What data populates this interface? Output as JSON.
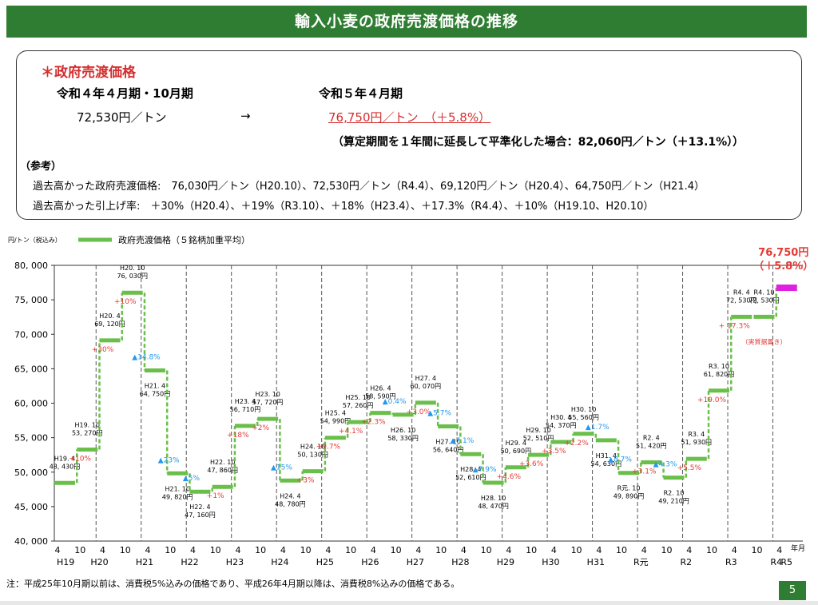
{
  "header": {
    "title": "輸入小麦の政府売渡価格の推移"
  },
  "summary": {
    "heading": "＊政府売渡価格",
    "prev_period": "令和４年４月期・10月期",
    "prev_price": "72,530円／トン",
    "arrow": "→",
    "new_period": "令和５年４月期",
    "new_price": "76,750円／トン　（＋5.8%）",
    "note": "（算定期間を１年間に延長して平準化した場合：82,060円／トン（＋13.1%））",
    "ref_label": "（参考）",
    "ref_line1": "過去高かった政府売渡価格:　76,030円／トン（H20.10）、72,530円／トン（R4.4）、69,120円／トン（H20.4）、64,750円／トン（H21.4）",
    "ref_line2": "過去高かった引上げ率:　＋30%（H20.4）、＋19%（R3.10）、＋18%（H23.4）、＋17.3%（R4.4）、＋10%（H19.10、H20.10）"
  },
  "chart_data": {
    "type": "line",
    "title": "",
    "unit_label": "円/トン（税込み）",
    "legend": "政府売渡価格（５銘柄加重平均）",
    "ylim": [
      40000,
      80000
    ],
    "yticks": [
      "40, 000",
      "45, 000",
      "50, 000",
      "55, 000",
      "60, 000",
      "65, 000",
      "70, 000",
      "75, 000",
      "80, 000"
    ],
    "ytick_values": [
      40000,
      45000,
      50000,
      55000,
      60000,
      65000,
      70000,
      75000,
      80000
    ],
    "x_axis_unit": "年月",
    "periods": [
      "H19.4",
      "H19.10",
      "H20.4",
      "H20.10",
      "H21.4",
      "H21.10",
      "H22.4",
      "H22.10",
      "H23.4",
      "H23.10",
      "H24.4",
      "H24.10",
      "H25.4",
      "H25.10",
      "H26.4",
      "H26.10",
      "H27.4",
      "H27.10",
      "H28.4",
      "H28.10",
      "H29.4",
      "H29.10",
      "H30.4",
      "H30.10",
      "H31.4",
      "R元.10",
      "R2.4",
      "R2.10",
      "R3.4",
      "R3.10",
      "R4.4",
      "R4.10",
      "R5.4"
    ],
    "values": [
      48430,
      53270,
      69120,
      76030,
      64750,
      49820,
      47160,
      47860,
      56710,
      57720,
      48780,
      50130,
      54990,
      57260,
      58590,
      58330,
      60070,
      56640,
      52610,
      48470,
      50690,
      52510,
      54370,
      55560,
      54630,
      49890,
      51420,
      49210,
      51930,
      61820,
      72530,
      72530,
      76750
    ],
    "price_labels": [
      "48, 430円",
      "53, 270円",
      "69, 120円",
      "76, 030円",
      "64, 750円",
      "49, 820円",
      "47, 160円",
      "47, 860円",
      "56, 710円",
      "57, 720円",
      "48, 780円",
      "50, 130円",
      "54, 990円",
      "57, 260円",
      "58, 590円",
      "58, 330円",
      "60, 070円",
      "56, 640円",
      "52, 610円",
      "48, 470円",
      "50, 690円",
      "52, 510円",
      "54, 370円",
      "55, 560円",
      "54, 630円",
      "49, 890円",
      "51, 420円",
      "49, 210円",
      "51, 930円",
      "61, 820円",
      "72, 530円",
      "72, 530円",
      ""
    ],
    "period_labels": [
      "H19. 4",
      "H19. 10",
      "H20. 4",
      "H20. 10",
      "H21. 4",
      "H21. 10",
      "H22. 4",
      "H22. 10",
      "H23. 4",
      "H23. 10",
      "H24. 4",
      "H24. 10",
      "H25. 4",
      "H25. 10",
      "H26. 4",
      "H26. 10",
      "H27. 4",
      "H27. 10",
      "H28. 4",
      "H28. 10",
      "H29. 4",
      "H29. 10",
      "H30. 4",
      "H30. 10",
      "H31. 4",
      "R元. 10",
      "R2. 4",
      "R2. 10",
      "R3. 4",
      "R3. 10",
      "R4. 4",
      "R4. 10",
      ""
    ],
    "changes": [
      "",
      "+10%",
      "+30%",
      "+10%",
      "▲14.8%",
      "▲23%",
      "▲5%",
      "+1%",
      "+18%",
      "+2%",
      "▲15%",
      "+3%",
      "+9.7%",
      "+4.1%",
      "+2.3%",
      "▲0.4%",
      "+3.0%",
      "▲5.7%",
      "▲7.1%",
      "▲7.9%",
      "+4.6%",
      "+3.6%",
      "+3.5%",
      "+2.2%",
      "▲1.7%",
      "▲8.7%",
      "+3.1%",
      "▲4.3%",
      "+5.5%",
      "+19.0%",
      "+ 17.3%",
      "",
      ""
    ],
    "r4_10_note": "（実質据置き）",
    "latest_price": "76,750円",
    "latest_change": "（＋5.8%）",
    "x_month_labels": [
      "4",
      "10",
      "4",
      "10",
      "4",
      "10",
      "4",
      "10",
      "4",
      "10",
      "4",
      "10",
      "4",
      "10",
      "4",
      "10",
      "4",
      "10",
      "4",
      "10",
      "4",
      "10",
      "4",
      "10",
      "4",
      "10",
      "4",
      "10",
      "4",
      "10",
      "4",
      "10",
      "4"
    ],
    "x_year_labels": [
      "H19",
      "H20",
      "H21",
      "H22",
      "H23",
      "H24",
      "H25",
      "H26",
      "H27",
      "H28",
      "H29",
      "H30",
      "H31",
      "R元",
      "R2",
      "R3",
      "R4",
      "R5"
    ]
  },
  "colors": {
    "line": "#6abf4b",
    "increase": "#e53935",
    "decrease": "#2196f3",
    "latest": "#e020e0",
    "header": "#2e7d32"
  },
  "footer": {
    "note": "注：平成25年10月期以前は、消費税5%込みの価格であり、平成26年4月期以降は、消費税8%込みの価格である。",
    "page": "5"
  }
}
